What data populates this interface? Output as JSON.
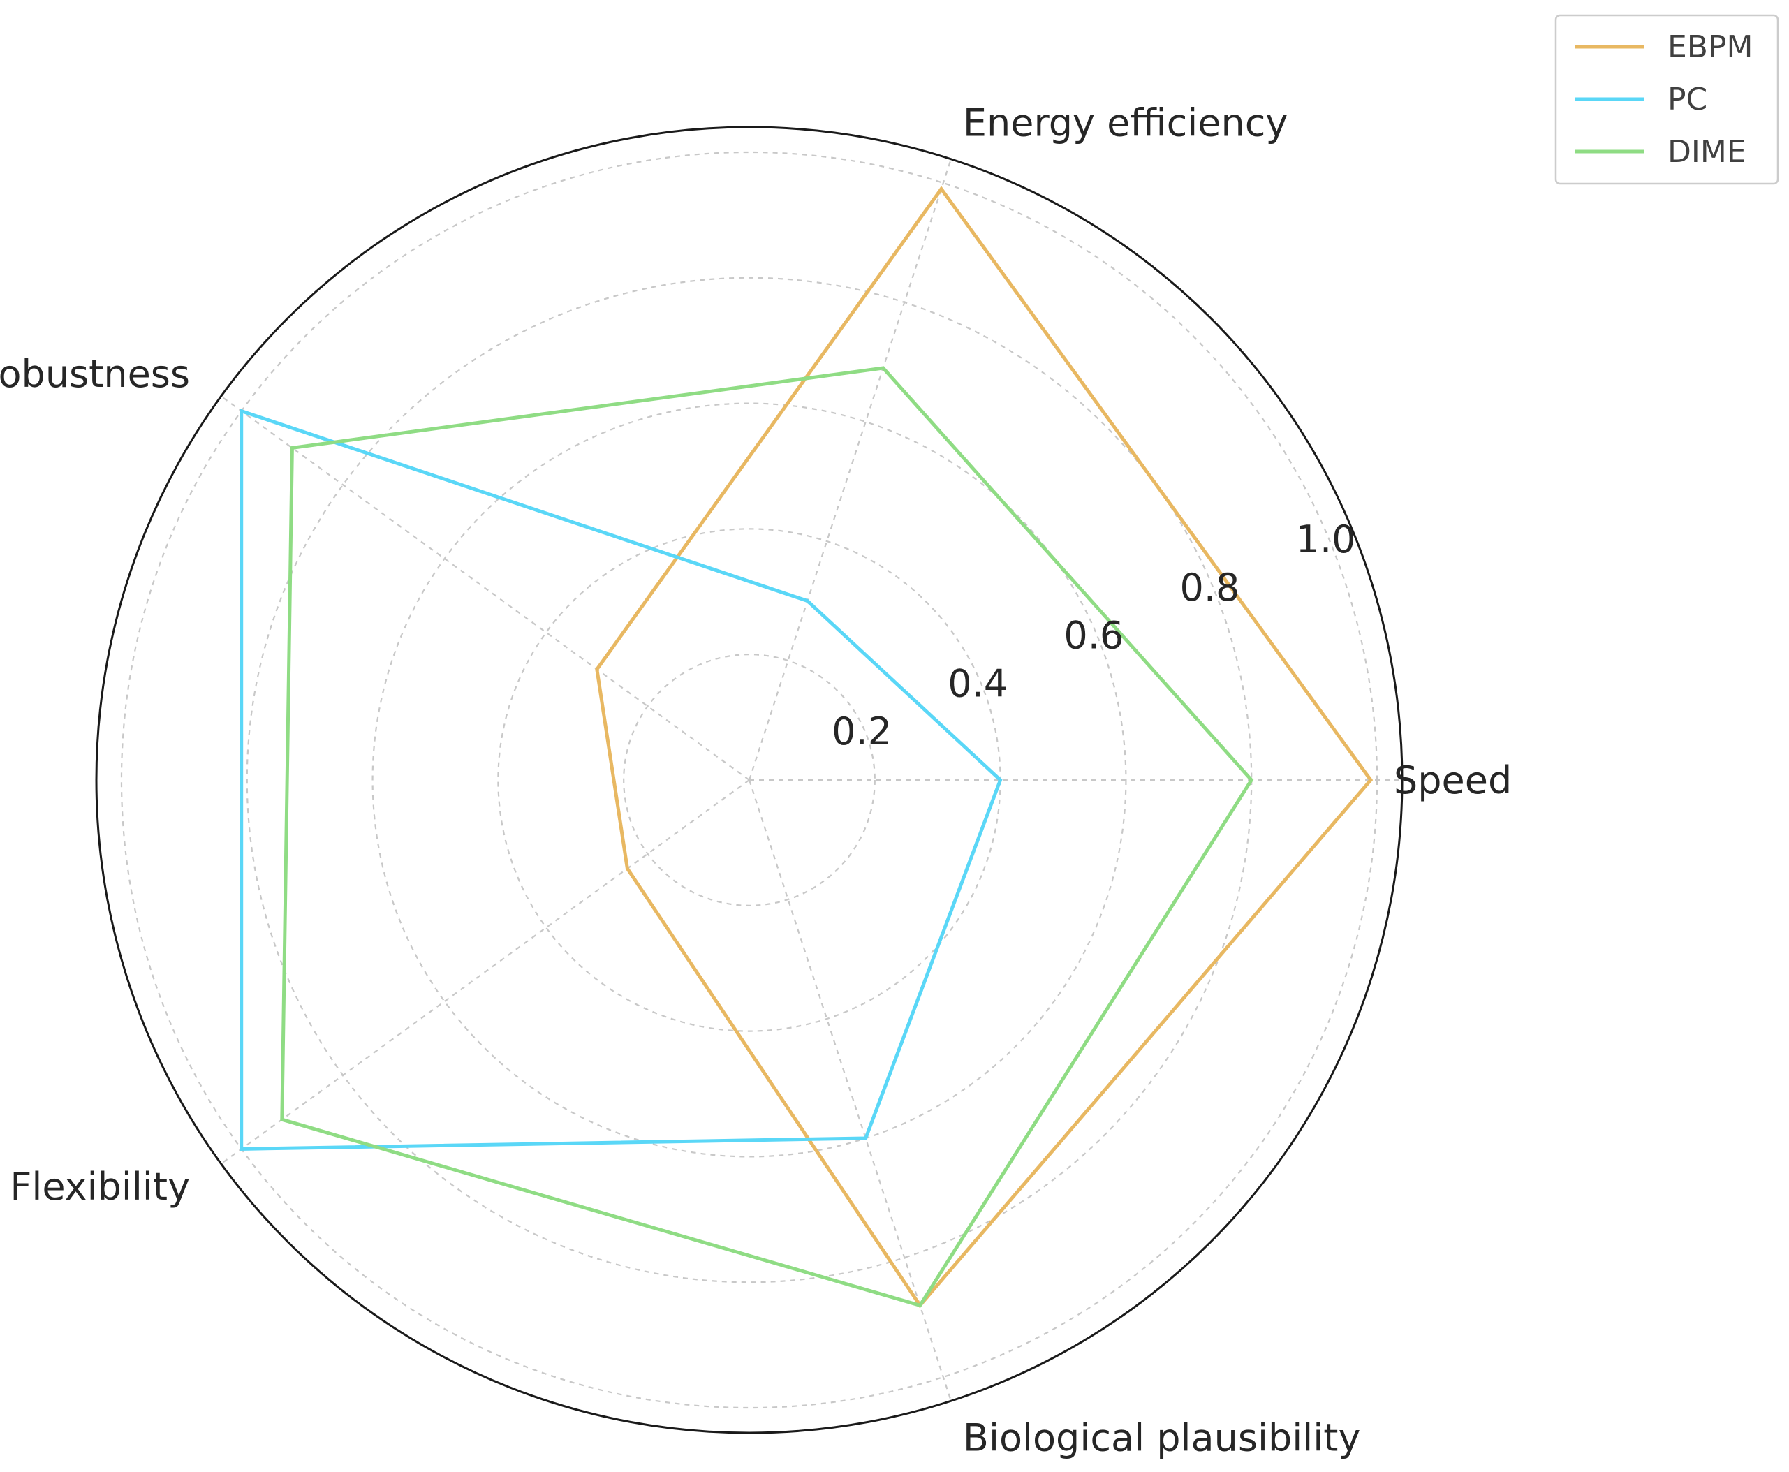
{
  "chart_data": {
    "type": "radar",
    "axes": [
      "Speed",
      "Energy efficiency",
      "Noise robustness",
      "Flexibility",
      "Biological plausibility"
    ],
    "radial_ticks": [
      "0.2",
      "0.4",
      "0.6",
      "0.8",
      "1.0"
    ],
    "rlim": [
      0,
      1.04
    ],
    "grid": true,
    "legend_position": "top-right",
    "series": [
      {
        "name": "EBPM",
        "color": "#e8b862",
        "values": [
          0.99,
          0.99,
          0.3,
          0.24,
          0.88
        ]
      },
      {
        "name": "PC",
        "color": "#5ad7f7",
        "values": [
          0.4,
          0.3,
          1.0,
          1.0,
          0.6
        ]
      },
      {
        "name": "DIME",
        "color": "#8fdc84",
        "values": [
          0.8,
          0.69,
          0.9,
          0.92,
          0.88
        ]
      }
    ]
  }
}
